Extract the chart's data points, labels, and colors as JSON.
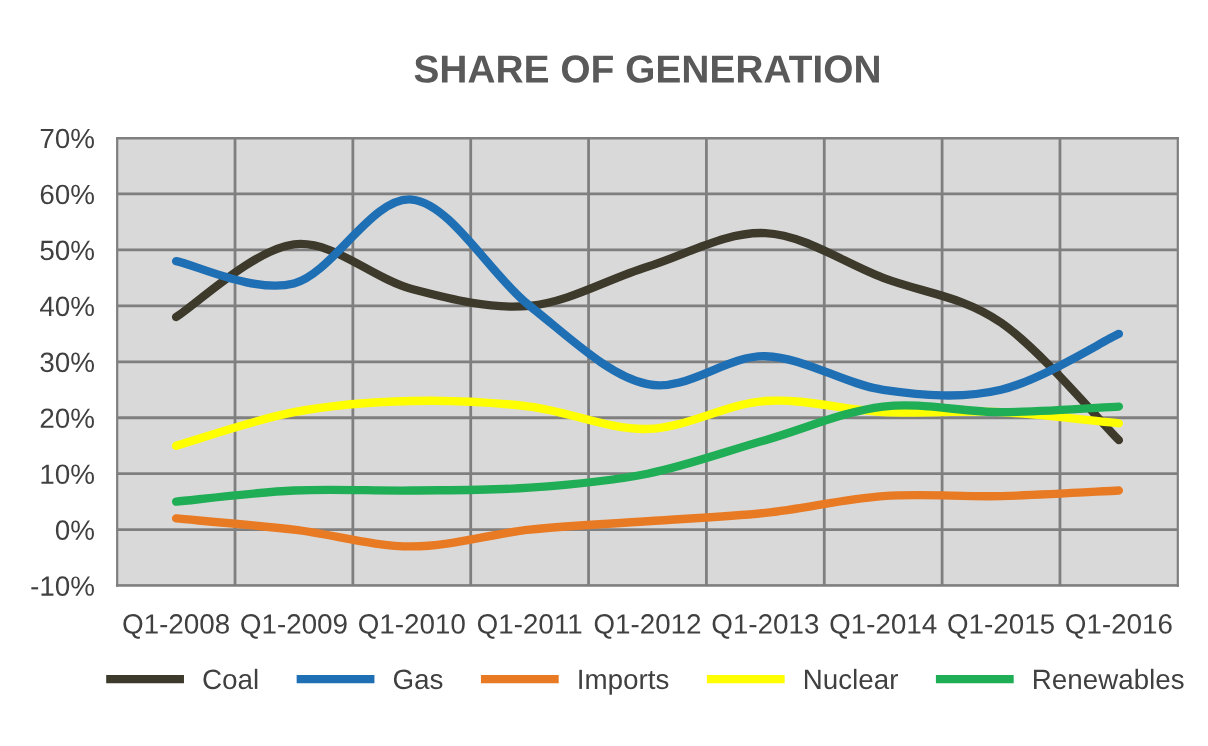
{
  "chart_data": {
    "type": "line",
    "title": "SHARE OF GENERATION",
    "categories": [
      "Q1-2008",
      "Q1-2009",
      "Q1-2010",
      "Q1-2011",
      "Q1-2012",
      "Q1-2013",
      "Q1-2014",
      "Q1-2015",
      "Q1-2016"
    ],
    "series": [
      {
        "name": "Coal",
        "color": "#3d3a2c",
        "values": [
          38,
          51,
          43,
          40,
          47,
          53,
          45,
          37,
          16
        ]
      },
      {
        "name": "Gas",
        "color": "#1f6fb5",
        "values": [
          48,
          44,
          59,
          40,
          26,
          31,
          25,
          25,
          35
        ]
      },
      {
        "name": "Imports",
        "color": "#e87a24",
        "values": [
          2,
          0,
          -3,
          0,
          1.5,
          3,
          6,
          6,
          7
        ]
      },
      {
        "name": "Nuclear",
        "color": "#ffff00",
        "values": [
          15,
          21,
          23,
          22,
          18,
          23,
          21,
          21,
          19
        ]
      },
      {
        "name": "Renewables",
        "color": "#1fae55",
        "values": [
          5,
          7,
          7,
          7.5,
          10,
          16,
          22,
          21,
          22
        ]
      }
    ],
    "ylim": [
      -10,
      70
    ],
    "yticks": [
      {
        "value": -10,
        "label": "-10%"
      },
      {
        "value": 0,
        "label": "0%"
      },
      {
        "value": 10,
        "label": "10%"
      },
      {
        "value": 20,
        "label": "20%"
      },
      {
        "value": 30,
        "label": "30%"
      },
      {
        "value": 40,
        "label": "40%"
      },
      {
        "value": 50,
        "label": "50%"
      },
      {
        "value": 60,
        "label": "60%"
      },
      {
        "value": 70,
        "label": "70%"
      }
    ],
    "grid": true,
    "legend": "bottom",
    "marker": "none",
    "line_style": "solid"
  }
}
